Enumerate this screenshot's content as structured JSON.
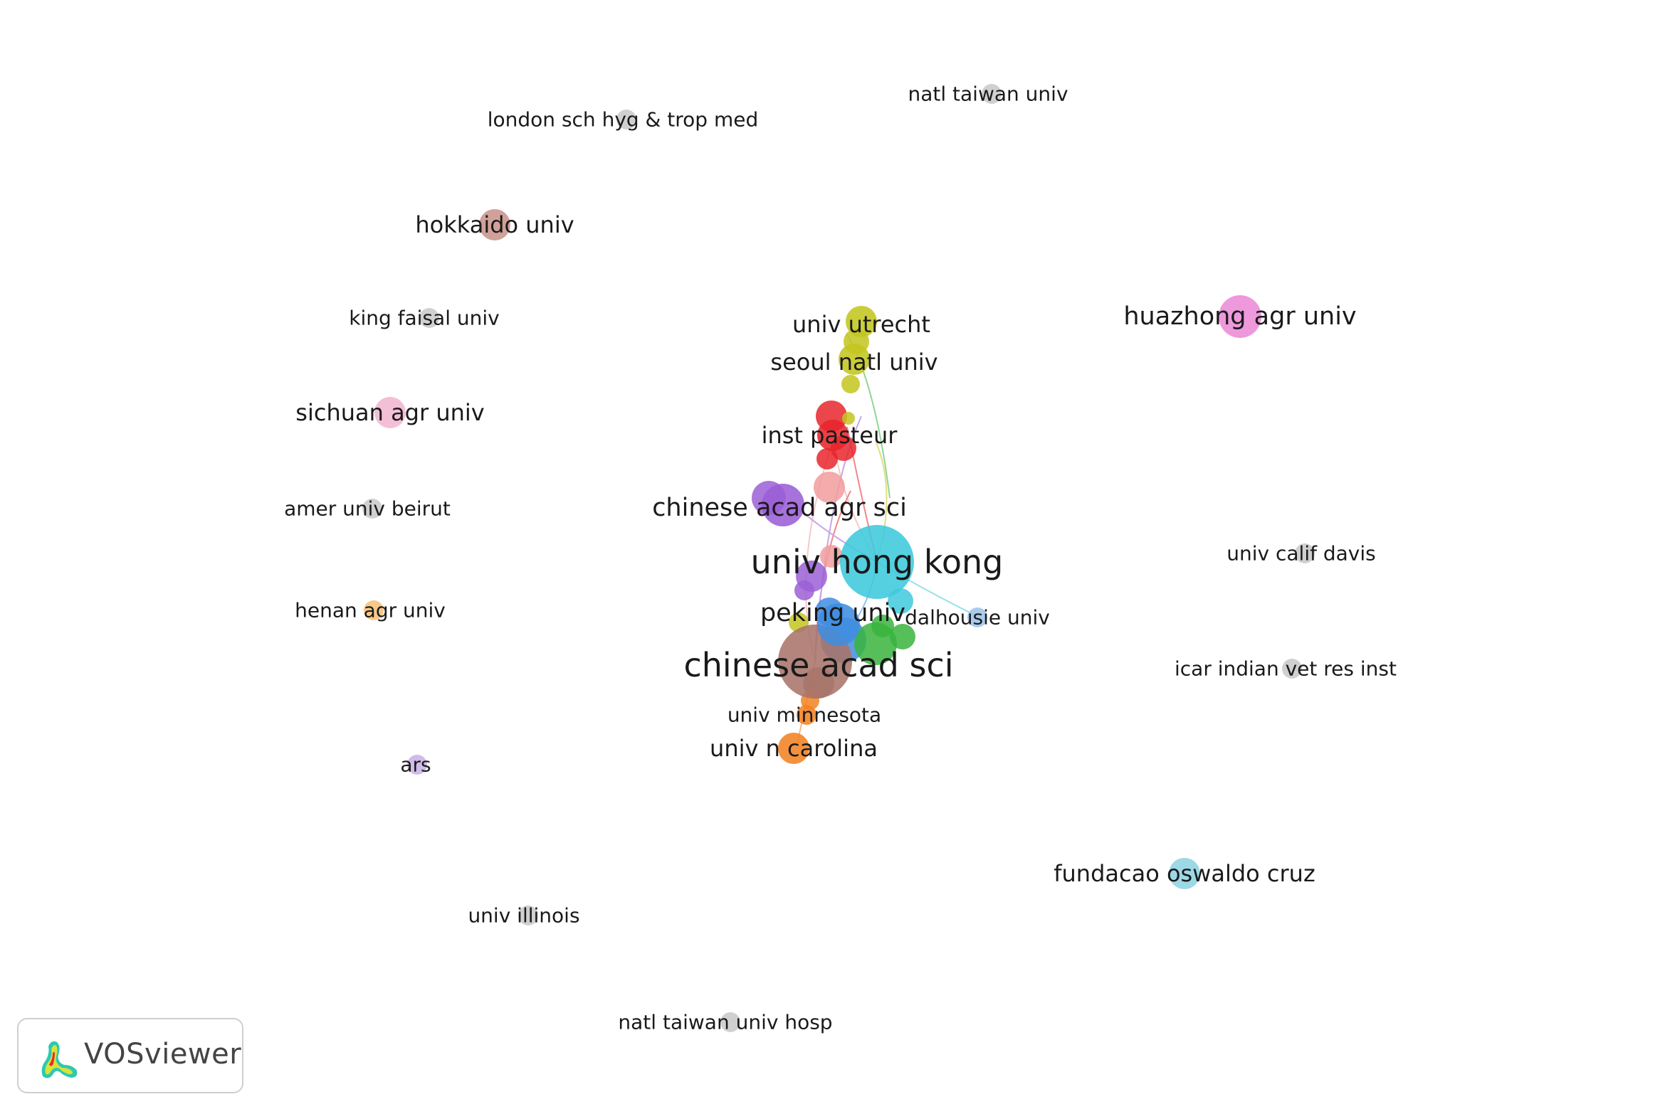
{
  "app": {
    "name": "VOSviewer"
  },
  "clusters": {
    "red": "#e8262b",
    "yellow": "#c3c61f",
    "purple": "#9b5fd6",
    "cyan": "#3ec9dc",
    "blue": "#3f8de0",
    "green": "#38b43d",
    "brown": "#a9746a",
    "orange": "#f28223",
    "pink": "#ea8bd6",
    "salmon": "#f29c9c",
    "gray": "#c8c8c8",
    "lightpink": "#f1b6d2",
    "lightorange": "#f6c07a",
    "lavender": "#c8b3e6",
    "lightblue": "#9ec4ea",
    "lightcyan": "#8fd3e3",
    "rosybrown": "#c9948c"
  },
  "nodes": [
    {
      "label": "univ hong kong",
      "color": "cyan",
      "weight": 10,
      "size_class": "xl"
    },
    {
      "label": "chinese acad sci",
      "color": "brown",
      "weight": 9,
      "size_class": "xl"
    },
    {
      "label": "chinese acad agr sci",
      "color": "purple",
      "weight": 5,
      "size_class": "l"
    },
    {
      "label": "peking univ",
      "color": "blue",
      "weight": 5,
      "size_class": "l"
    },
    {
      "label": "huazhong agr univ",
      "color": "pink",
      "weight": 6,
      "size_class": "l"
    },
    {
      "label": "inst pasteur",
      "color": "red",
      "weight": 4,
      "size_class": "m"
    },
    {
      "label": "univ utrecht",
      "color": "yellow",
      "weight": 4,
      "size_class": "m"
    },
    {
      "label": "seoul natl univ",
      "color": "yellow",
      "weight": 3,
      "size_class": "m"
    },
    {
      "label": "univ n carolina",
      "color": "orange",
      "weight": 4,
      "size_class": "m"
    },
    {
      "label": "univ minnesota",
      "color": "orange",
      "weight": 2,
      "size_class": "s"
    },
    {
      "label": "dalhousie univ",
      "color": "lightblue",
      "weight": 2,
      "size_class": "s"
    },
    {
      "label": "fundacao oswaldo cruz",
      "color": "lightcyan",
      "weight": 3,
      "size_class": "m"
    },
    {
      "label": "hokkaido univ",
      "color": "rosybrown",
      "weight": 3,
      "size_class": "m"
    },
    {
      "label": "sichuan agr univ",
      "color": "lightpink",
      "weight": 3,
      "size_class": "m"
    },
    {
      "label": "henan agr univ",
      "color": "lightorange",
      "weight": 2,
      "size_class": "s"
    },
    {
      "label": "ars",
      "color": "lavender",
      "weight": 2,
      "size_class": "s"
    },
    {
      "label": "london sch hyg & trop med",
      "color": "gray",
      "weight": 2,
      "size_class": "s"
    },
    {
      "label": "natl taiwan univ",
      "color": "gray",
      "weight": 2,
      "size_class": "s"
    },
    {
      "label": "king faisal univ",
      "color": "gray",
      "weight": 2,
      "size_class": "s"
    },
    {
      "label": "amer univ beirut",
      "color": "gray",
      "weight": 2,
      "size_class": "s"
    },
    {
      "label": "univ calif davis",
      "color": "gray",
      "weight": 2,
      "size_class": "s"
    },
    {
      "label": "icar indian vet res inst",
      "color": "gray",
      "weight": 2,
      "size_class": "s"
    },
    {
      "label": "univ illinois",
      "color": "gray",
      "weight": 2,
      "size_class": "s"
    },
    {
      "label": "natl taiwan univ hosp",
      "color": "gray",
      "weight": 2,
      "size_class": "s"
    }
  ]
}
